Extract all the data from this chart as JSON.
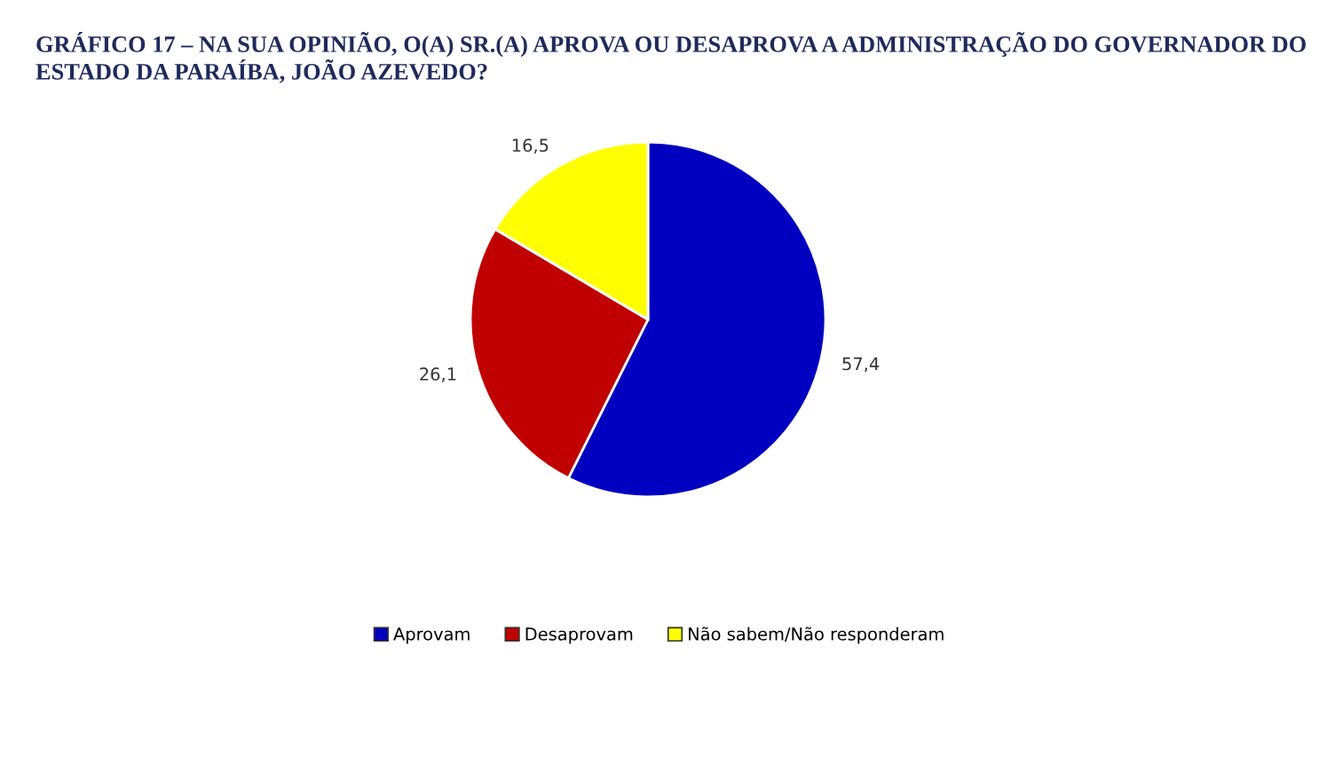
{
  "chart_data": {
    "type": "pie",
    "title": "GRÁFICO 17 – NA SUA OPINIÃO, O(A) SR.(A) APROVA OU DESAPROVA A ADMINISTRAÇÃO DO GOVERNADOR DO ESTADO DA PARAÍBA, JOÃO AZEVEDO?",
    "categories": [
      "Aprovam",
      "Desaprovam",
      "Não sabem/Não responderam"
    ],
    "values": [
      57.4,
      26.1,
      16.5
    ],
    "value_labels": [
      "57,4",
      "26,1",
      "16,5"
    ],
    "colors": [
      "#0000c0",
      "#c00000",
      "#ffff00"
    ],
    "legend": "bottom"
  }
}
